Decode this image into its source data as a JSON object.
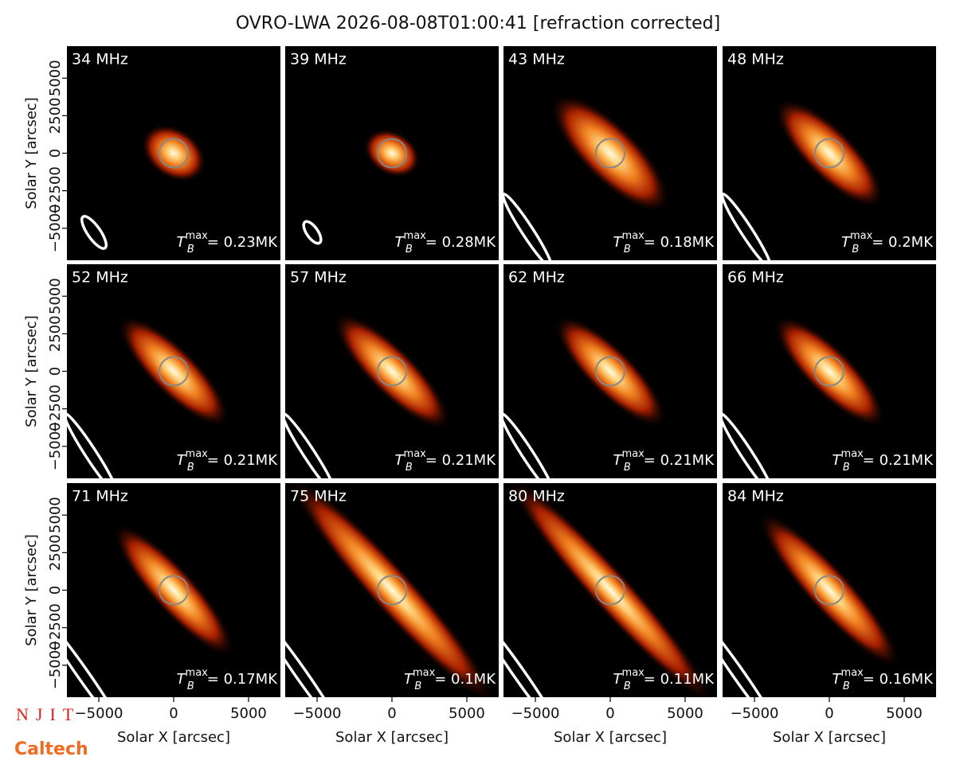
{
  "title": "OVRO-LWA 2026-08-08T01:00:41 [refraction corrected]",
  "xlabel": "Solar X [arcsec]",
  "ylabel": "Solar Y [arcsec]",
  "xlim": [
    -7130,
    7130
  ],
  "ylim": [
    -7130,
    7130
  ],
  "xticks": [
    {
      "value": -5000,
      "label": "−5000"
    },
    0,
    5000
  ],
  "yticks": [
    {
      "value": -5000,
      "label": "−5000"
    },
    {
      "value": -2500,
      "label": "−2500"
    },
    0,
    2500,
    5000
  ],
  "tmax_symbol": "T",
  "tmax_sub": "B",
  "tmax_sup": "max",
  "panels": [
    {
      "freq": "34 MHz",
      "tmax": "= 0.23MK"
    },
    {
      "freq": "39 MHz",
      "tmax": "= 0.28MK"
    },
    {
      "freq": "43 MHz",
      "tmax": "= 0.18MK"
    },
    {
      "freq": "48 MHz",
      "tmax": "= 0.2MK"
    },
    {
      "freq": "52 MHz",
      "tmax": "= 0.21MK"
    },
    {
      "freq": "57 MHz",
      "tmax": "= 0.21MK"
    },
    {
      "freq": "62 MHz",
      "tmax": "= 0.21MK"
    },
    {
      "freq": "66 MHz",
      "tmax": "= 0.21MK"
    },
    {
      "freq": "71 MHz",
      "tmax": "= 0.17MK"
    },
    {
      "freq": "75 MHz",
      "tmax": "= 0.1MK"
    },
    {
      "freq": "80 MHz",
      "tmax": "= 0.11MK"
    },
    {
      "freq": "84 MHz",
      "tmax": "= 0.16MK"
    }
  ],
  "logos": {
    "njit": "NJIT",
    "caltech": "Caltech"
  }
}
